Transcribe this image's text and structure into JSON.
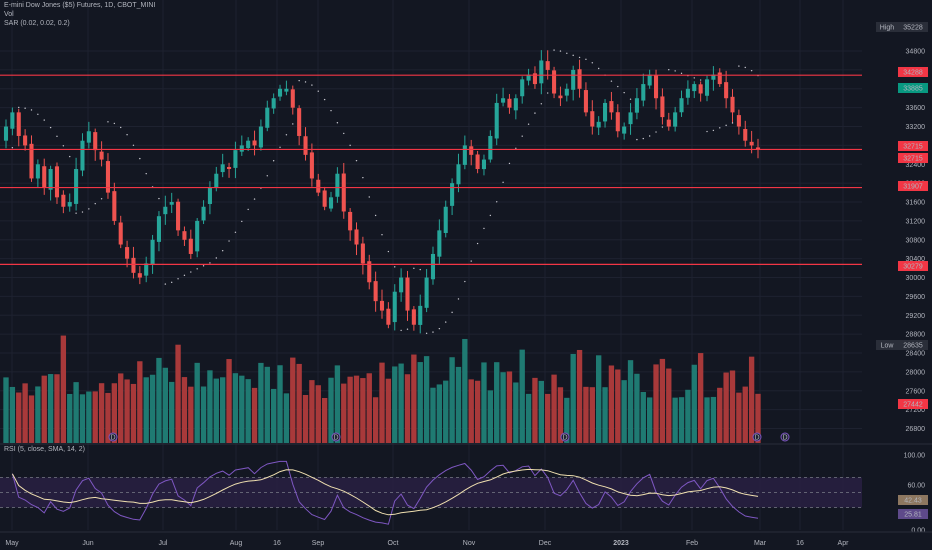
{
  "legend": {
    "symbol": "E-mini Dow Jones ($5) Futures, 1D, CBOT_MINI",
    "volume": "Vol",
    "sar": "SAR (0.02, 0.02, 0.2)",
    "rsi": "RSI (5, close, SMA, 14, 2)"
  },
  "colors": {
    "background": "#131722",
    "grid": "#1e2230",
    "up": "#26a69a",
    "down": "#ef5350",
    "vol_up": "#1f7a72",
    "vol_down": "#a8393a",
    "level_line": "#f23645",
    "rsi_line": "#7e57c2",
    "rsi_ma": "#f0e0b0",
    "rsi_band": "#2a2045"
  },
  "chart_data": [
    {
      "type": "candlestick",
      "name": "price",
      "yticks": [
        26800,
        27200,
        27600,
        28000,
        28400,
        28800,
        29200,
        29600,
        30000,
        30400,
        30800,
        31200,
        31600,
        32000,
        32400,
        32800,
        33200,
        33600,
        34000,
        34400,
        34800
      ],
      "ylim": [
        26600,
        35500
      ],
      "xticks": [
        "May",
        "Jun",
        "Jul",
        "Aug",
        "16",
        "Sep",
        "Oct",
        "Nov",
        "Dec",
        "2023",
        "Feb",
        "Mar",
        "16",
        "Apr"
      ],
      "horizontal_levels": [
        34288,
        32715,
        31907,
        30279
      ],
      "axis_tags": [
        {
          "text": "High",
          "value": "35228",
          "kind": "dark"
        },
        {
          "text": "",
          "value": "34288",
          "kind": "red"
        },
        {
          "text": "",
          "value": "33885",
          "kind": "green"
        },
        {
          "text": "",
          "value": "32715",
          "kind": "red"
        },
        {
          "text": "",
          "value": "32715",
          "kind": "red"
        },
        {
          "text": "",
          "value": "31907",
          "kind": "red"
        },
        {
          "text": "",
          "value": "30279",
          "kind": "red"
        },
        {
          "text": "Low",
          "value": "28635",
          "kind": "dark"
        },
        {
          "text": "",
          "value": "27442",
          "kind": "red"
        }
      ],
      "events": [
        "D",
        "D",
        "D",
        "D",
        "D"
      ],
      "closes": [
        33200,
        33500,
        33000,
        32800,
        32100,
        32400,
        31900,
        32300,
        31700,
        31500,
        31600,
        32300,
        32900,
        33100,
        32700,
        32500,
        31800,
        31200,
        30700,
        30400,
        30100,
        30000,
        30300,
        30800,
        31300,
        31500,
        31600,
        31000,
        30800,
        30500,
        31200,
        31500,
        31900,
        32200,
        32400,
        32300,
        32700,
        32800,
        32900,
        32800,
        33200,
        33600,
        33800,
        34000,
        34000,
        33600,
        33000,
        32600,
        32100,
        31800,
        31500,
        31700,
        32200,
        31400,
        31000,
        30700,
        30300,
        29900,
        29500,
        29300,
        29000,
        29700,
        30000,
        29300,
        29000,
        29400,
        30000,
        30500,
        31000,
        31500,
        32000,
        32400,
        32800,
        32600,
        32300,
        32500,
        33000,
        33700,
        33800,
        33600,
        33800,
        34200,
        34300,
        34100,
        34600,
        34400,
        33900,
        33800,
        34000,
        34400,
        34000,
        33500,
        33200,
        33300,
        33700,
        33500,
        33100,
        33200,
        33500,
        33800,
        34100,
        34300,
        33800,
        33400,
        33200,
        33500,
        33800,
        34000,
        34100,
        33900,
        34200,
        34300,
        34100,
        33800,
        33500,
        33200,
        32900,
        32800,
        32715
      ],
      "rsi": {
        "yticks": [
          100,
          60,
          40,
          0
        ],
        "ylim": [
          0,
          100
        ],
        "levels": [
          70,
          50,
          30
        ],
        "tags": [
          {
            "value": "42.43",
            "kind": "tan"
          },
          {
            "value": "25.81",
            "kind": "purple"
          }
        ]
      }
    }
  ]
}
